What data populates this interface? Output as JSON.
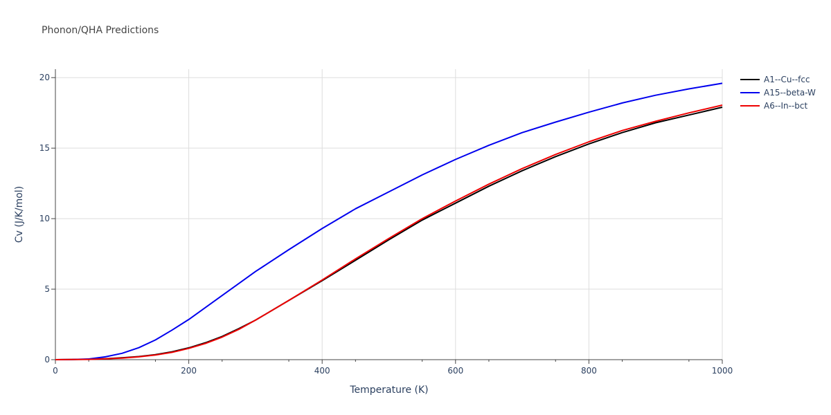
{
  "chart_data": {
    "type": "line",
    "title": "Phonon/QHA Predictions",
    "xlabel": "Temperature (K)",
    "ylabel": "Cv (J/K/mol)",
    "xlim": [
      0,
      1000
    ],
    "ylim": [
      0,
      20.6
    ],
    "x_ticks": [
      0,
      200,
      400,
      600,
      800,
      1000
    ],
    "y_ticks": [
      0,
      5,
      10,
      15,
      20
    ],
    "grid": true,
    "legend": "top-right",
    "series": [
      {
        "name": "A1--Cu--fcc",
        "color": "#000000",
        "x": [
          0,
          25,
          50,
          75,
          100,
          125,
          150,
          175,
          200,
          225,
          250,
          275,
          300,
          350,
          400,
          450,
          500,
          550,
          600,
          650,
          700,
          750,
          800,
          850,
          900,
          950,
          1000
        ],
        "y": [
          0,
          0.01,
          0.03,
          0.07,
          0.13,
          0.22,
          0.36,
          0.56,
          0.84,
          1.2,
          1.65,
          2.2,
          2.8,
          4.2,
          5.6,
          7.05,
          8.5,
          9.9,
          11.1,
          12.3,
          13.4,
          14.4,
          15.3,
          16.1,
          16.8,
          17.35,
          17.9
        ]
      },
      {
        "name": "A15--beta-W",
        "color": "#0000ee",
        "x": [
          0,
          25,
          50,
          75,
          100,
          125,
          150,
          175,
          200,
          225,
          250,
          275,
          300,
          350,
          400,
          450,
          500,
          550,
          600,
          650,
          700,
          750,
          800,
          850,
          900,
          950,
          1000
        ],
        "y": [
          0,
          0.01,
          0.05,
          0.2,
          0.45,
          0.85,
          1.4,
          2.1,
          2.85,
          3.7,
          4.55,
          5.4,
          6.25,
          7.8,
          9.3,
          10.7,
          11.9,
          13.1,
          14.2,
          15.2,
          16.1,
          16.85,
          17.55,
          18.2,
          18.75,
          19.2,
          19.6
        ]
      },
      {
        "name": "A6--In--bct",
        "color": "#ee0000",
        "x": [
          0,
          25,
          50,
          75,
          100,
          125,
          150,
          175,
          200,
          225,
          250,
          275,
          300,
          350,
          400,
          450,
          500,
          550,
          600,
          650,
          700,
          750,
          800,
          850,
          900,
          950,
          1000
        ],
        "y": [
          0,
          0.01,
          0.02,
          0.06,
          0.11,
          0.2,
          0.33,
          0.52,
          0.8,
          1.15,
          1.6,
          2.15,
          2.8,
          4.2,
          5.65,
          7.15,
          8.6,
          10.0,
          11.25,
          12.45,
          13.55,
          14.55,
          15.45,
          16.25,
          16.9,
          17.5,
          18.05
        ]
      }
    ]
  }
}
